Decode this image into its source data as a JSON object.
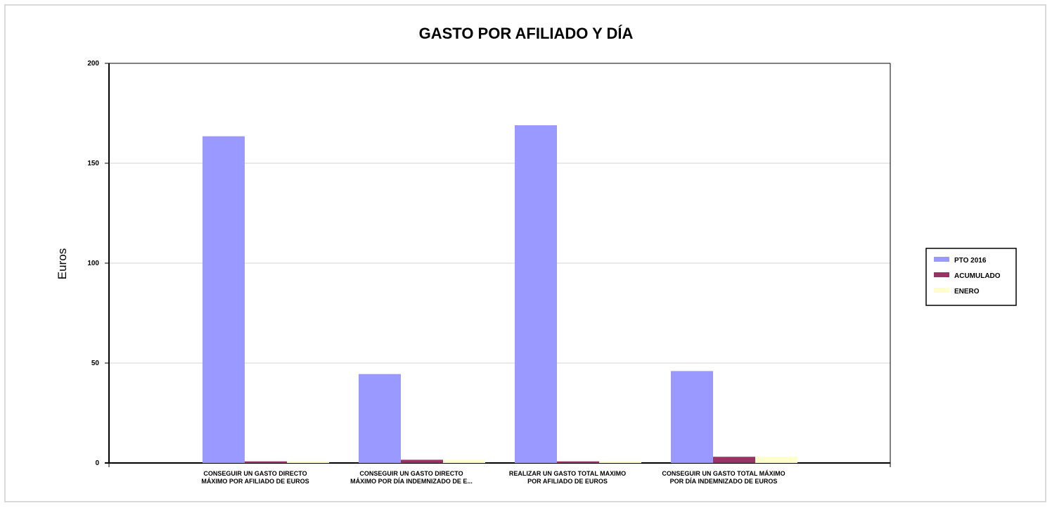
{
  "chart_data": {
    "type": "bar",
    "title": "GASTO POR AFILIADO Y DÍA",
    "xlabel": "",
    "ylabel": "Euros",
    "ylim": [
      0,
      200
    ],
    "yticks": [
      "0",
      "50",
      "100",
      "150",
      "200"
    ],
    "grid": true,
    "legend_position": "right",
    "categories": [
      [
        "CONSEGUIR UN GASTO DIRECTO",
        "MÁXIMO POR AFILIADO DE EUROS"
      ],
      [
        "CONSEGUIR UN GASTO DIRECTO",
        "MÁXIMO POR DÍA INDEMNIZADO DE E..."
      ],
      [
        "REALIZAR UN GASTO TOTAL MAXIMO",
        "POR AFILIADO DE EUROS"
      ],
      [
        "CONSEGUIR UN GASTO TOTAL MÁXIMO",
        "POR DÍA INDEMNIZADO DE EUROS"
      ]
    ],
    "series": [
      {
        "name": "PTO 2016",
        "color": "#9999ff",
        "values": [
          163.5,
          44.5,
          169,
          46
        ]
      },
      {
        "name": "ACUMULADO",
        "color": "#993366",
        "values": [
          0.8,
          1.6,
          0.8,
          3.1
        ]
      },
      {
        "name": "ENERO",
        "color": "#ffffcc",
        "values": [
          0.8,
          1.6,
          0.8,
          3.1
        ]
      }
    ]
  }
}
